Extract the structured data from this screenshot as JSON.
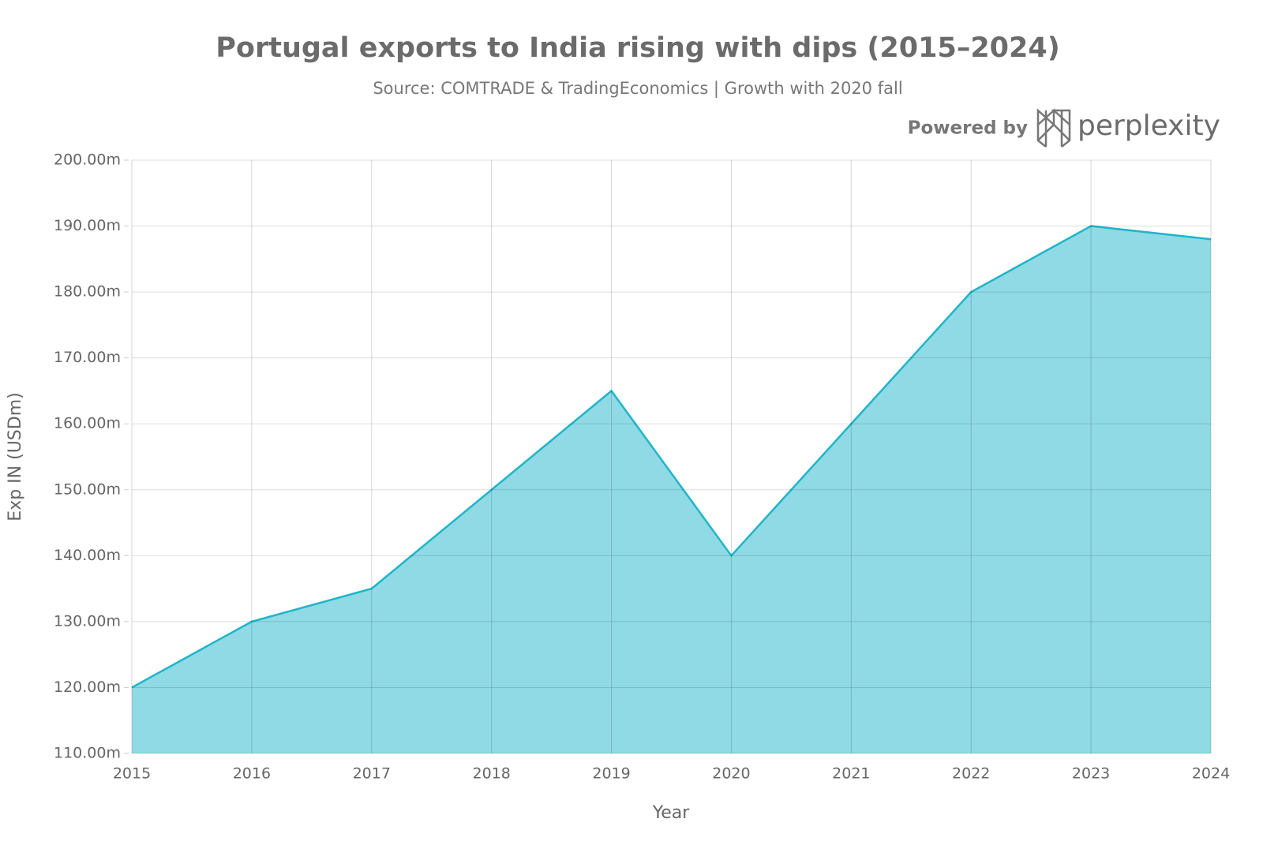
{
  "chart_data": {
    "type": "area",
    "title": "Portugal exports to India rising with dips (2015–2024)",
    "subtitle": "Source: COMTRADE & TradingEconomics | Growth with 2020 fall",
    "x_label": "Year",
    "y_label": "Exp IN (USDm)",
    "x": [
      2015,
      2016,
      2017,
      2018,
      2019,
      2020,
      2021,
      2022,
      2023,
      2024
    ],
    "values": [
      120,
      130,
      135,
      150,
      165,
      140,
      160,
      180,
      190,
      188
    ],
    "color": "#1fb5c9",
    "fill_color": "#8fdae4",
    "xlim": [
      2015,
      2024
    ],
    "xticks": [
      2015,
      2016,
      2017,
      2018,
      2019,
      2020,
      2021,
      2022,
      2023,
      2024
    ],
    "ylim": [
      110,
      200
    ],
    "yticks": [
      {
        "value": 110,
        "label": "110.00m"
      },
      {
        "value": 120,
        "label": "120.00m"
      },
      {
        "value": 130,
        "label": "130.00m"
      },
      {
        "value": 140,
        "label": "140.00m"
      },
      {
        "value": 150,
        "label": "150.00m"
      },
      {
        "value": 160,
        "label": "160.00m"
      },
      {
        "value": 170,
        "label": "170.00m"
      },
      {
        "value": 180,
        "label": "180.00m"
      },
      {
        "value": 190,
        "label": "190.00m"
      },
      {
        "value": 200,
        "label": "200.00m"
      }
    ],
    "grid": true
  },
  "branding": {
    "prefix": "Powered by",
    "name": "perplexity"
  }
}
